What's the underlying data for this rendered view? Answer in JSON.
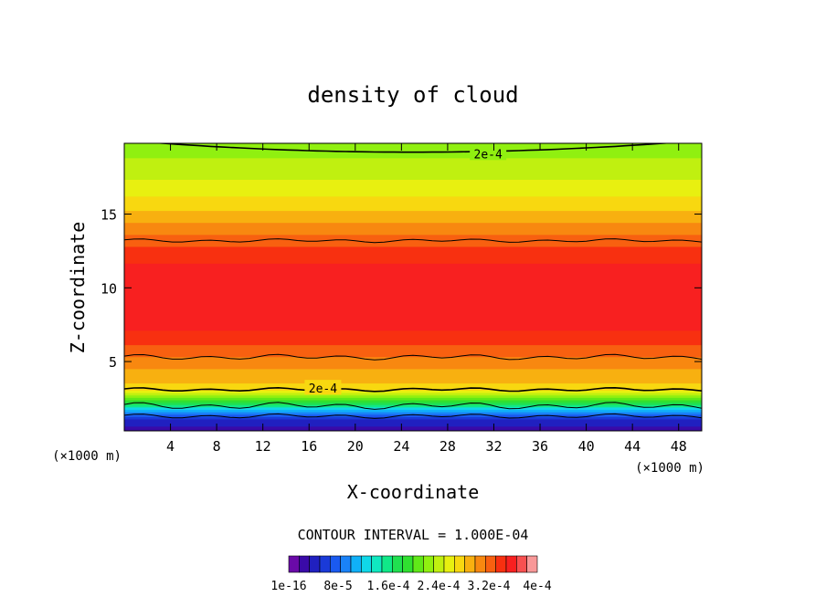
{
  "chart_data": {
    "type": "heatmap",
    "title": "density of cloud",
    "xlabel": "X-coordinate",
    "ylabel": "Z-coordinate",
    "x_unit": "(×1000 m)",
    "x_unit_right": "(×1000 m)",
    "xlim": [
      0,
      50
    ],
    "ylim": [
      0.3,
      19.8
    ],
    "x_ticks": [
      4,
      8,
      12,
      16,
      20,
      24,
      28,
      32,
      36,
      40,
      44,
      48
    ],
    "y_ticks": [
      5,
      10,
      15
    ],
    "contour_labels": [
      {
        "text": "2e-4",
        "x": 31.5,
        "z": 19.1
      },
      {
        "text": "2e-4",
        "x": 17.2,
        "z": 3.2
      }
    ],
    "contour_interval_text": "CONTOUR INTERVAL = 1.000E-04",
    "colorbar": {
      "min": 1e-16,
      "max": 0.0004,
      "levels": 24,
      "tick_labels": [
        "1e-16",
        "8e-5",
        "1.6e-4",
        "2.4e-4",
        "3.2e-4",
        "4e-4"
      ],
      "colors": [
        "#6a0aa8",
        "#3a0aa8",
        "#2020c0",
        "#1a3ad8",
        "#1a5af0",
        "#1a82f8",
        "#10b0f8",
        "#10d8e8",
        "#10e8c0",
        "#10e888",
        "#20e050",
        "#30e030",
        "#60e818",
        "#90f010",
        "#c0f010",
        "#e8f010",
        "#f8d810",
        "#f8b010",
        "#f88810",
        "#f86010",
        "#f83010",
        "#f82020",
        "#f85050",
        "#f89898"
      ]
    },
    "grid": false,
    "legend": "none"
  }
}
